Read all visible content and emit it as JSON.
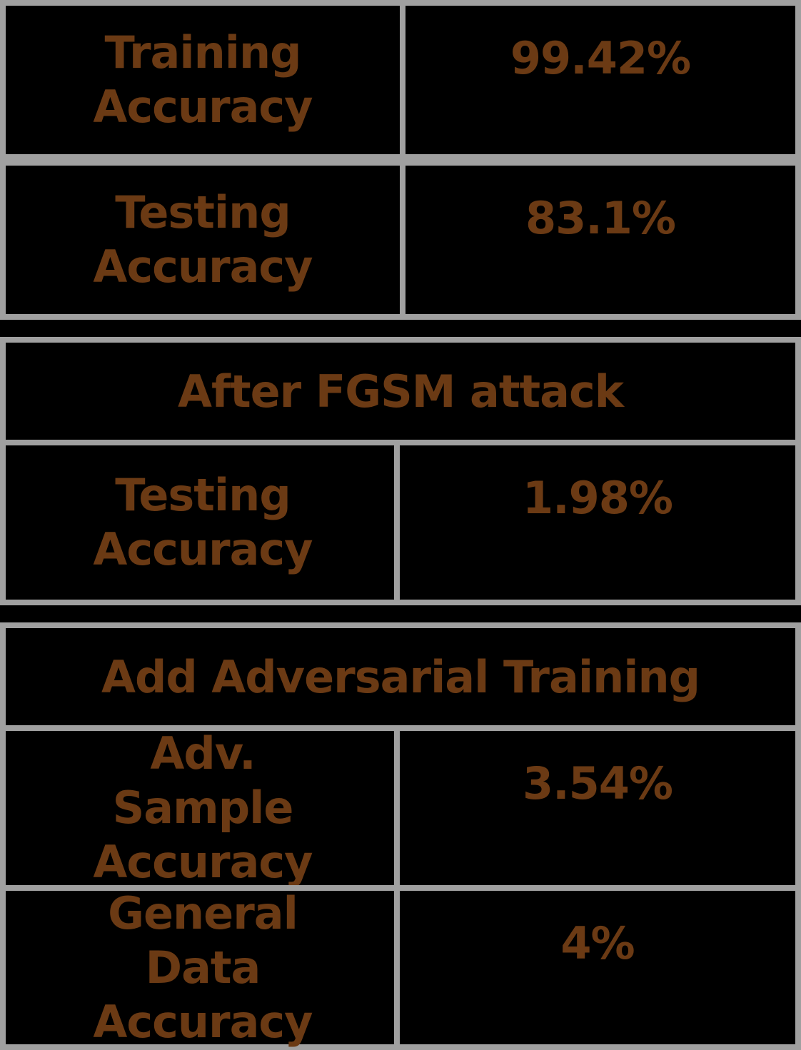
{
  "colors": {
    "background": "#000000",
    "border": "#a0a0a0",
    "text": "#6b3a14"
  },
  "table1": {
    "rows": [
      {
        "label": "Training Accuracy",
        "value": "99.42%"
      },
      {
        "label": "Testing Accuracy",
        "value": "83.1%"
      }
    ]
  },
  "table2": {
    "header": "After FGSM attack",
    "rows": [
      {
        "label": "Testing Accuracy",
        "value": "1.98%"
      }
    ]
  },
  "table3": {
    "header": "Add Adversarial Training",
    "rows": [
      {
        "label": "Adv. Sample Accuracy",
        "value": "3.54%"
      },
      {
        "label": "General Data Accuracy",
        "value": "4%"
      }
    ]
  }
}
